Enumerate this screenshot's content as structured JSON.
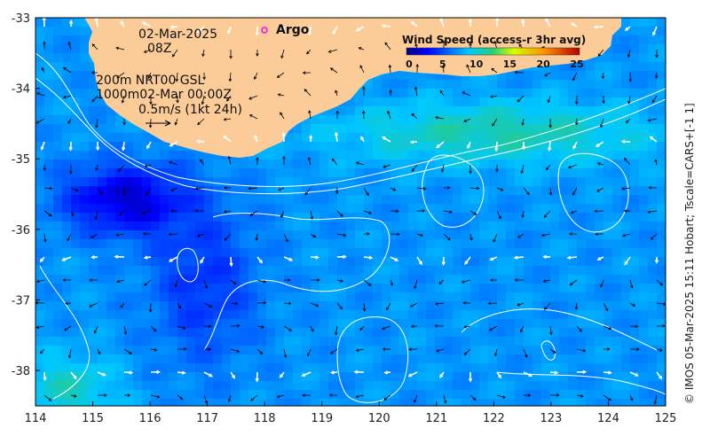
{
  "map": {
    "date": "02-Mar-2025",
    "hour": "08Z",
    "contours_line1": "200m  NRT00 GSL",
    "contours_line2": "1000m02-Mar 00:00Z",
    "vector_scale": "0.5m/s (1kt 24h)",
    "argo_label": "Argo",
    "credit": "© IMOS 05-Mar-2025 15:11 Hobart; Tscale=CARS+[-1 1]",
    "colors": {
      "land": "#fbcc98",
      "argo_marker": "#ff00ff"
    }
  },
  "legend": {
    "title": "Wind Speed (access-r 3hr avg)",
    "ticks": [
      "0",
      "5",
      "10",
      "15",
      "20",
      "25"
    ]
  },
  "axes": {
    "x_ticks": [
      "114",
      "115",
      "116",
      "117",
      "118",
      "119",
      "120",
      "121",
      "122",
      "123",
      "124",
      "125"
    ],
    "y_ticks": [
      "-33",
      "-34",
      "-35",
      "-36",
      "-37",
      "-38"
    ]
  }
}
